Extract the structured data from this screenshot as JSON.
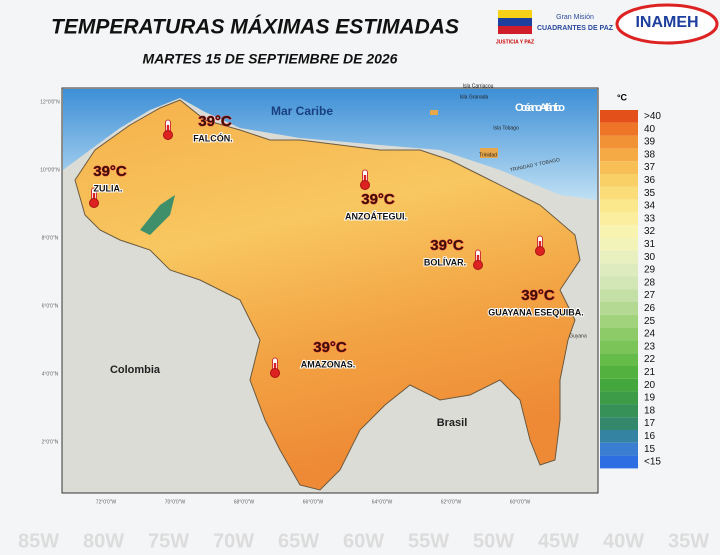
{
  "header": {
    "title": "TEMPERATURAS MÁXIMAS ESTIMADAS",
    "subtitle": "MARTES 15 DE SEPTIEMBRE DE 2026"
  },
  "logos": {
    "ministry": "JUSTICIA Y PAZ",
    "mission_top": "Gran Misión",
    "mission": "CUADRANTES DE PAZ",
    "institute": "INAMEH"
  },
  "map": {
    "seas": [
      "Mar Caribe",
      "Océano Atlántico"
    ],
    "countries": [
      "Colombia",
      "Brasil",
      "Guyana",
      "TRINIDAD Y TOBAGO"
    ],
    "islands": [
      "Isla Carriacou",
      "Isla Granada",
      "Isla Tobago",
      "Trinidad"
    ],
    "latitudes": [
      "12°0'0\"N",
      "10°0'0\"N",
      "8°0'0\"N",
      "6°0'0\"N",
      "4°0'0\"N",
      "2°0'0\"N"
    ],
    "longitudes": [
      "72°0'0\"W",
      "70°0'0\"W",
      "68°0'0\"W",
      "66°0'0\"W",
      "64°0'0\"W",
      "62°0'0\"W",
      "60°0'0\"W"
    ],
    "regions": [
      {
        "temp": "39°C",
        "name": "FALCÓN."
      },
      {
        "temp": "39°C",
        "name": "ZULIA."
      },
      {
        "temp": "39°C",
        "name": "ANZOÁTEGUI."
      },
      {
        "temp": "39°C",
        "name": "BOLÍVAR."
      },
      {
        "temp": "39°C",
        "name": "GUAYANA ESEQUIBA."
      },
      {
        "temp": "39°C",
        "name": "AMAZONAS."
      }
    ]
  },
  "legend": {
    "title": "°C",
    "items": [
      {
        "label": ">40",
        "color": "#e4501a"
      },
      {
        "label": "40",
        "color": "#ee7528"
      },
      {
        "label": "39",
        "color": "#f29236"
      },
      {
        "label": "38",
        "color": "#f5aa45"
      },
      {
        "label": "37",
        "color": "#f7bf55"
      },
      {
        "label": "36",
        "color": "#f9d066"
      },
      {
        "label": "35",
        "color": "#fadd78"
      },
      {
        "label": "34",
        "color": "#fbe88c"
      },
      {
        "label": "33",
        "color": "#fbef9f"
      },
      {
        "label": "32",
        "color": "#f8f3af"
      },
      {
        "label": "31",
        "color": "#f1f3b8"
      },
      {
        "label": "30",
        "color": "#e8f0bf"
      },
      {
        "label": "29",
        "color": "#deebbf"
      },
      {
        "label": "28",
        "color": "#d2e6b6"
      },
      {
        "label": "27",
        "color": "#c4e0a6"
      },
      {
        "label": "26",
        "color": "#b4d992"
      },
      {
        "label": "25",
        "color": "#a1d27c"
      },
      {
        "label": "24",
        "color": "#8dcb68"
      },
      {
        "label": "23",
        "color": "#7ac458"
      },
      {
        "label": "22",
        "color": "#66bc48"
      },
      {
        "label": "21",
        "color": "#53b23f"
      },
      {
        "label": "20",
        "color": "#44a73e"
      },
      {
        "label": "19",
        "color": "#3c9c48"
      },
      {
        "label": "18",
        "color": "#369158"
      },
      {
        "label": "17",
        "color": "#33886c"
      },
      {
        "label": "16",
        "color": "#3583a2"
      },
      {
        "label": "15",
        "color": "#3a7ed2"
      },
      {
        "label": "<15",
        "color": "#2d6ee2"
      }
    ]
  },
  "background_longitudes": [
    "85W",
    "80W",
    "75W",
    "70W",
    "65W",
    "60W",
    "55W",
    "50W",
    "45W",
    "40W",
    "35W"
  ]
}
